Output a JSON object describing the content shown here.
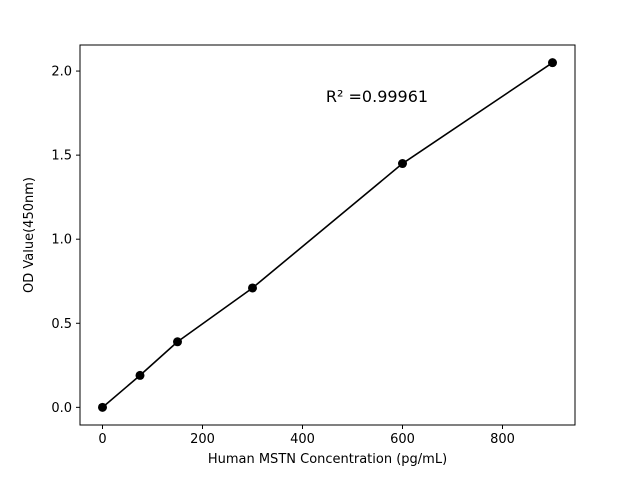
{
  "chart_data": {
    "type": "scatter",
    "xlabel": "Human MSTN Concentration (pg/mL)",
    "ylabel": "OD Value(450nm)",
    "annotation": "R² =0.99961",
    "x": [
      0,
      75,
      150,
      300,
      600,
      900
    ],
    "y": [
      0.0,
      0.19,
      0.39,
      0.71,
      1.45,
      2.05
    ],
    "xlim": [
      -45,
      945
    ],
    "ylim": [
      -0.105,
      2.155
    ],
    "xticks": {
      "values": [
        0,
        200,
        400,
        600,
        800
      ],
      "labels": [
        "0",
        "200",
        "400",
        "600",
        "800"
      ]
    },
    "yticks": {
      "values": [
        0.0,
        0.5,
        1.0,
        1.5,
        2.0
      ],
      "labels": [
        "0.0",
        "0.5",
        "1.0",
        "1.5",
        "2.0"
      ]
    },
    "grid": false,
    "legend": null,
    "line_color": "#000000",
    "marker_color": "#000000",
    "background_color": "#ffffff"
  }
}
